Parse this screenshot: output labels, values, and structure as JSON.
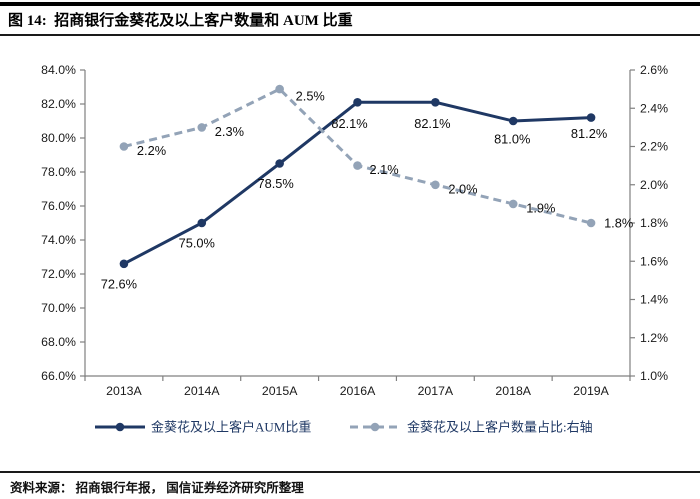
{
  "figure": {
    "title": "图 14:  招商银行金葵花及以上客户数量和 AUM 比重",
    "source": "资料来源： 招商银行年报， 国信证券经济研究所整理"
  },
  "chart_data": {
    "type": "line",
    "title": "招商银行金葵花及以上客户数量和 AUM 比重",
    "categories": [
      "2013A",
      "2014A",
      "2015A",
      "2016A",
      "2017A",
      "2018A",
      "2019A"
    ],
    "series": [
      {
        "name": "金葵花及以上客户AUM比重",
        "axis": "left",
        "line_style": "solid",
        "color": "#1F3864",
        "values": [
          72.6,
          75.0,
          78.5,
          82.1,
          82.1,
          81.0,
          81.2
        ],
        "point_labels": [
          "72.6%",
          "75.0%",
          "78.5%",
          "82.1%",
          "82.1%",
          "81.0%",
          "81.2%"
        ]
      },
      {
        "name": "金葵花及以上客户数量占比:右轴",
        "axis": "right",
        "line_style": "dashed",
        "color": "#93A3B7",
        "values": [
          2.2,
          2.3,
          2.5,
          2.1,
          2.0,
          1.9,
          1.8
        ],
        "point_labels": [
          "2.2%",
          "2.3%",
          "2.5%",
          "2.1%",
          "2.0%",
          "1.9%",
          "1.8%"
        ]
      }
    ],
    "left_axis": {
      "min": 66.0,
      "max": 84.0,
      "step": 2.0,
      "unit": "%",
      "tick_labels": [
        "84.0%",
        "82.0%",
        "80.0%",
        "78.0%",
        "76.0%",
        "74.0%",
        "72.0%",
        "70.0%",
        "68.0%",
        "66.0%"
      ]
    },
    "right_axis": {
      "min": 1.0,
      "max": 2.6,
      "step": 0.2,
      "unit": "%",
      "tick_labels": [
        "2.6%",
        "2.4%",
        "2.2%",
        "2.0%",
        "1.8%",
        "1.6%",
        "1.4%",
        "1.2%",
        "1.0%"
      ]
    },
    "legend": {
      "position": "bottom",
      "entries": [
        "金葵花及以上客户AUM比重",
        "金葵花及以上客户数量占比:右轴"
      ]
    },
    "grid": false,
    "colors": {
      "primary": "#1F3864",
      "secondary": "#93A3B7",
      "axis": "#808080",
      "label": "#0d0d0d",
      "legend_text": "#1F3864"
    }
  }
}
